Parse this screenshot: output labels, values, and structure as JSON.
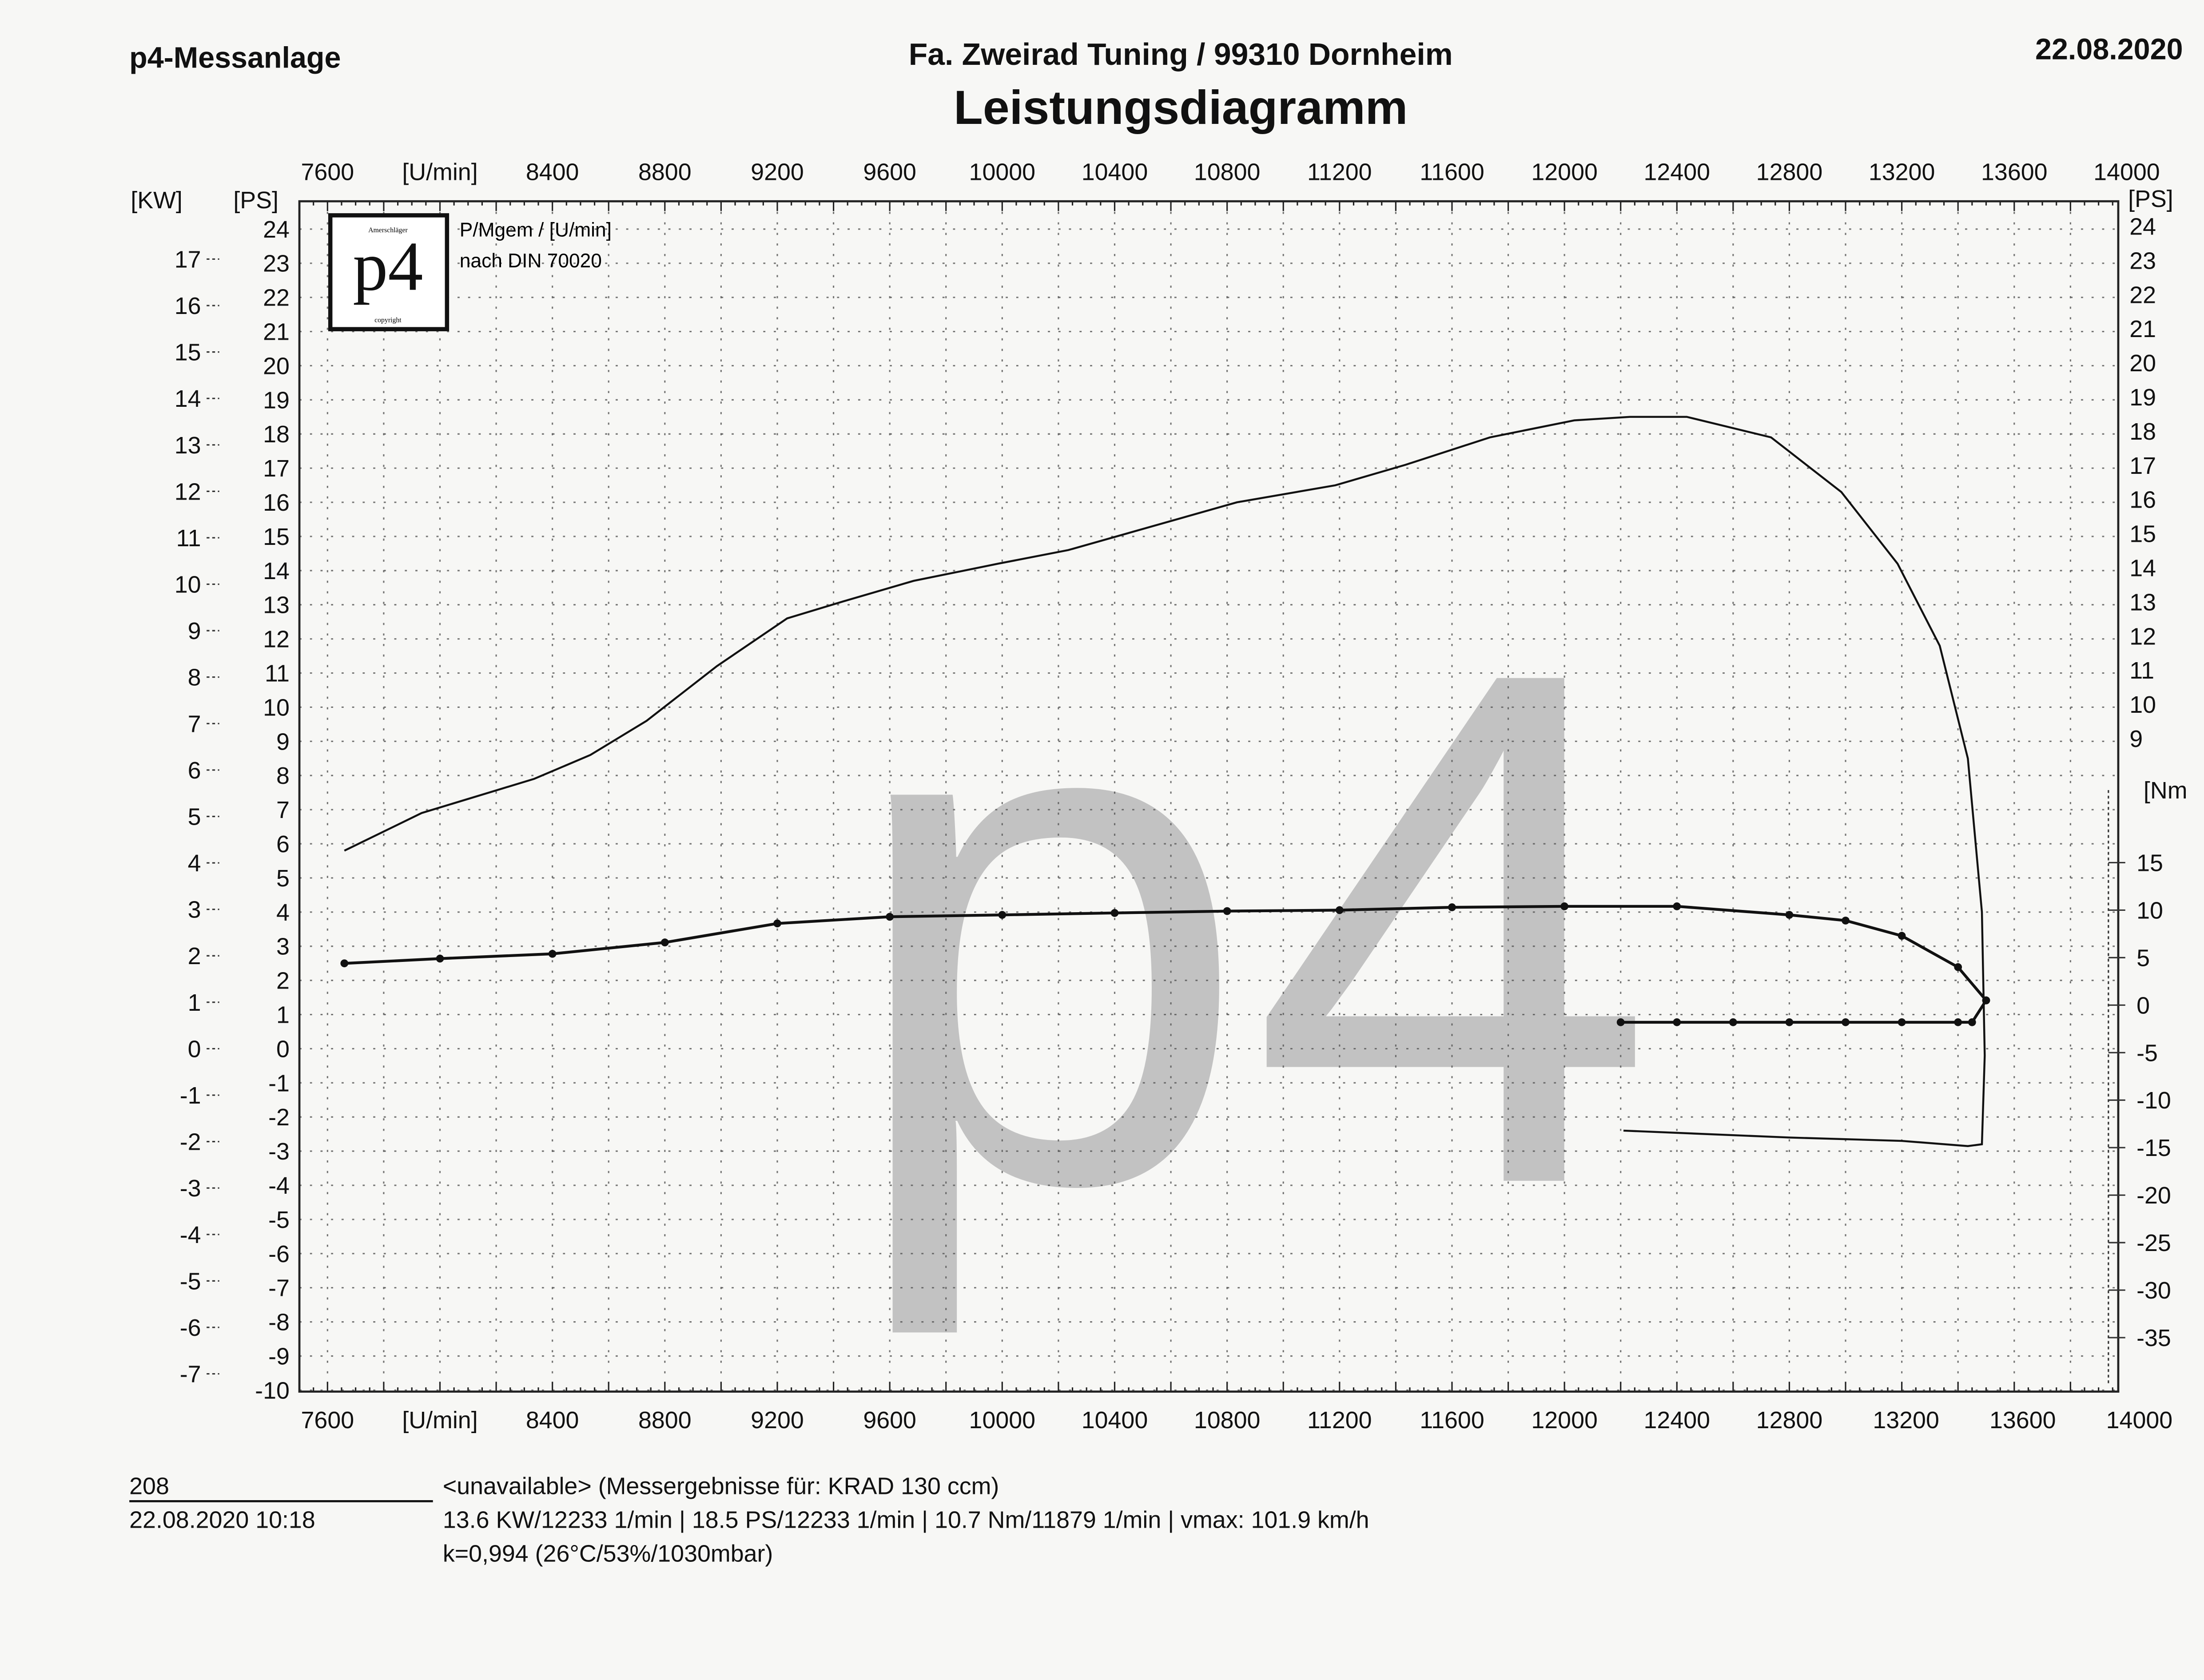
{
  "header": {
    "left": "p4-Messanlage",
    "company": "Fa. Zweirad Tuning / 99310 Dornheim",
    "title": "Leistungsdiagramm",
    "date": "22.08.2020"
  },
  "legend": {
    "logo_text": "p4",
    "logo_small_top": "Amerschläger",
    "logo_small_bottom": "copyright",
    "line1": "P/Mgem / [U/min]",
    "line2": "nach DIN 70020"
  },
  "watermark": "p4",
  "footer": {
    "run_number": "208",
    "datetime": "22.08.2020  10:18",
    "line1": "<unavailable> (Messergebnisse für: KRAD 130 ccm)",
    "line2": "13.6 KW/12233 1/min  |  18.5 PS/12233 1/min  |  10.7 Nm/11879 1/min | vmax: 101.9 km/h",
    "line3": "k=0,994 (26°C/53%/1030mbar)"
  },
  "chart_data": {
    "type": "line",
    "title": "Leistungsdiagramm",
    "xlabel": "[U/min]",
    "ylabel_left_kw": "[KW]",
    "ylabel_left_ps": "[PS]",
    "ylabel_right_ps": "[PS]",
    "ylabel_right_nm": "[Nm",
    "xlim": [
      7500,
      14000
    ],
    "ylim_ps": [
      -10,
      24
    ],
    "ylim_kw": [
      -7,
      17
    ],
    "ylim_nm": [
      -35,
      15
    ],
    "x_ticks": [
      7600,
      8000,
      8400,
      8800,
      9200,
      9600,
      10000,
      10400,
      10800,
      11200,
      11600,
      12000,
      12400,
      12800,
      13200,
      13600,
      14000
    ],
    "x_tick_labels_top": [
      "7600",
      "[U/min]",
      "8400",
      "8800",
      "9200",
      "9600",
      "10000",
      "10400",
      "10800",
      "11200",
      "11600",
      "12000",
      "12400",
      "12800",
      "13200",
      "13600",
      "14000"
    ],
    "x_tick_labels_bottom": [
      "7600",
      "[U/min]",
      "8400",
      "8800",
      "9200",
      "9600",
      "10000",
      "10400",
      "10800",
      "11200",
      "11600",
      "12000",
      "12400",
      "12800",
      "13200",
      "13600",
      "14000"
    ],
    "kw_ticks": [
      -7,
      -6,
      -5,
      -4,
      -3,
      -2,
      -1,
      0,
      1,
      2,
      3,
      4,
      5,
      6,
      7,
      8,
      9,
      10,
      11,
      12,
      13,
      14,
      15,
      16,
      17
    ],
    "ps_ticks": [
      -10,
      -9,
      -8,
      -7,
      -6,
      -5,
      -4,
      -3,
      -2,
      -1,
      0,
      1,
      2,
      3,
      4,
      5,
      6,
      7,
      8,
      9,
      10,
      11,
      12,
      13,
      14,
      15,
      16,
      17,
      18,
      19,
      20,
      21,
      22,
      23,
      24
    ],
    "ps_right_ticks": [
      9,
      10,
      11,
      12,
      13,
      14,
      15,
      16,
      17,
      18,
      19,
      20,
      21,
      22,
      23,
      24
    ],
    "nm_ticks": [
      -35,
      -30,
      -25,
      -20,
      -15,
      -10,
      -5,
      0,
      5,
      10,
      15
    ],
    "grid": true,
    "colors": {
      "lines": "#111111",
      "grid": "#555555",
      "watermark": "#bdbdbd"
    },
    "series": [
      {
        "axis": "ps",
        "marker": "none",
        "points": [
          [
            7660,
            5.8
          ],
          [
            7935,
            6.9
          ],
          [
            8335,
            7.9
          ],
          [
            8535,
            8.6
          ],
          [
            8735,
            9.6
          ],
          [
            8985,
            11.2
          ],
          [
            9235,
            12.6
          ],
          [
            9435,
            13.1
          ],
          [
            9685,
            13.7
          ],
          [
            9985,
            14.2
          ],
          [
            10235,
            14.6
          ],
          [
            10535,
            15.3
          ],
          [
            10835,
            16.0
          ],
          [
            11185,
            16.5
          ],
          [
            11435,
            17.1
          ],
          [
            11735,
            17.9
          ],
          [
            12035,
            18.4
          ],
          [
            12233,
            18.5
          ],
          [
            12435,
            18.5
          ],
          [
            12735,
            17.9
          ],
          [
            12985,
            16.3
          ],
          [
            13185,
            14.2
          ],
          [
            13335,
            11.8
          ],
          [
            13435,
            8.5
          ],
          [
            13485,
            4.0
          ],
          [
            13495,
            -0.2
          ],
          [
            13485,
            -2.8
          ],
          [
            13435,
            -2.85
          ],
          [
            13200,
            -2.7
          ],
          [
            12800,
            -2.6
          ],
          [
            12210,
            -2.4
          ]
        ]
      },
      {
        "axis": "nm",
        "marker": "dot",
        "points": [
          [
            7660,
            4.4
          ],
          [
            8000,
            4.9
          ],
          [
            8400,
            5.4
          ],
          [
            8800,
            6.6
          ],
          [
            9200,
            8.6
          ],
          [
            9600,
            9.3
          ],
          [
            10000,
            9.5
          ],
          [
            10400,
            9.7
          ],
          [
            10800,
            9.9
          ],
          [
            11200,
            10.0
          ],
          [
            11600,
            10.3
          ],
          [
            12000,
            10.4
          ],
          [
            12400,
            10.4
          ],
          [
            12800,
            9.5
          ],
          [
            13000,
            8.9
          ],
          [
            13200,
            7.3
          ],
          [
            13400,
            4.0
          ],
          [
            13500,
            0.5
          ]
        ]
      },
      {
        "axis": "nm",
        "marker": "dot",
        "points": [
          [
            12200,
            -1.8
          ],
          [
            12400,
            -1.8
          ],
          [
            12600,
            -1.8
          ],
          [
            12800,
            -1.8
          ],
          [
            13000,
            -1.8
          ],
          [
            13200,
            -1.8
          ],
          [
            13400,
            -1.8
          ],
          [
            13450,
            -1.8
          ],
          [
            13500,
            0.5
          ]
        ]
      }
    ]
  }
}
